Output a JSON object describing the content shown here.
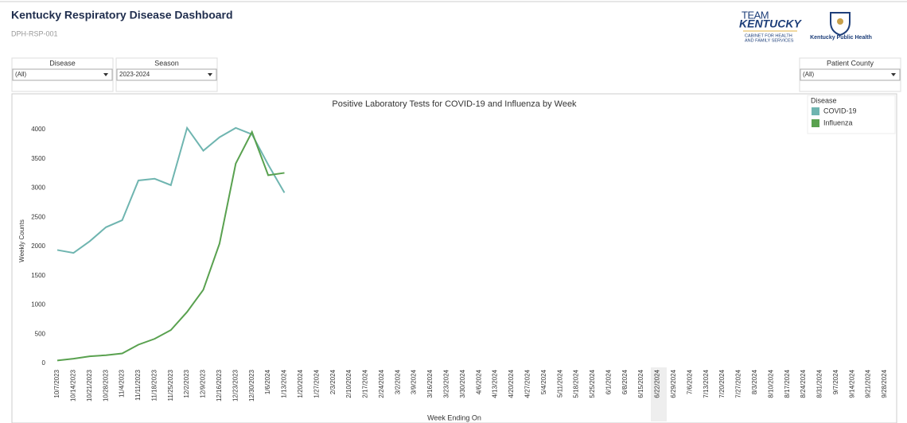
{
  "header": {
    "title": "Kentucky Respiratory Disease Dashboard",
    "code": "DPH-RSP-001"
  },
  "logos": {
    "team": "TEAM",
    "kentucky": "KENTUCKY",
    "cabinet": [
      "CABINET FOR HEALTH",
      "AND FAMILY SERVICES"
    ],
    "kph": "Kentucky Public Health"
  },
  "filters": [
    {
      "label": "Disease",
      "value": "(All)"
    },
    {
      "label": "Season",
      "value": "2023-2024"
    },
    {
      "label": "Patient County",
      "value": "(All)"
    }
  ],
  "chart_data": {
    "type": "line",
    "title": "Positive Laboratory Tests for COVID-19 and Influenza by Week",
    "x_label": "Week Ending On",
    "y_label": "Weekly Counts",
    "legend_title": "Disease",
    "legend": "top-right",
    "categories": [
      "10/7/2023",
      "10/14/2023",
      "10/21/2023",
      "10/28/2023",
      "11/4/2023",
      "11/11/2023",
      "11/18/2023",
      "11/25/2023",
      "12/2/2023",
      "12/9/2023",
      "12/16/2023",
      "12/23/2023",
      "12/30/2023",
      "1/6/2024",
      "1/13/2024",
      "1/20/2024",
      "1/27/2024",
      "2/3/2024",
      "2/10/2024",
      "2/17/2024",
      "2/24/2024",
      "3/2/2024",
      "3/9/2024",
      "3/16/2024",
      "3/23/2024",
      "3/30/2024",
      "4/6/2024",
      "4/13/2024",
      "4/20/2024",
      "4/27/2024",
      "5/4/2024",
      "5/11/2024",
      "5/18/2024",
      "5/25/2024",
      "6/1/2024",
      "6/8/2024",
      "6/15/2024",
      "6/22/2024",
      "6/29/2024",
      "7/6/2024",
      "7/13/2024",
      "7/20/2024",
      "7/27/2024",
      "8/3/2024",
      "8/10/2024",
      "8/17/2024",
      "8/24/2024",
      "8/31/2024",
      "9/7/2024",
      "9/14/2024",
      "9/21/2024",
      "9/28/2024"
    ],
    "series": [
      {
        "name": "COVID-19",
        "color": "#6fb5b0",
        "values": [
          1940,
          1890,
          2090,
          2330,
          2450,
          3130,
          3160,
          3050,
          4030,
          3640,
          3870,
          4030,
          3920,
          3400,
          2920,
          null,
          null,
          null,
          null,
          null,
          null,
          null,
          null,
          null,
          null,
          null,
          null,
          null,
          null,
          null,
          null,
          null,
          null,
          null,
          null,
          null,
          null,
          null,
          null,
          null,
          null,
          null,
          null,
          null,
          null,
          null,
          null,
          null,
          null,
          null,
          null,
          null
        ]
      },
      {
        "name": "Influenza",
        "color": "#59a14f",
        "values": [
          50,
          80,
          120,
          140,
          170,
          320,
          420,
          570,
          880,
          1260,
          2050,
          3420,
          3960,
          3220,
          3260,
          null,
          null,
          null,
          null,
          null,
          null,
          null,
          null,
          null,
          null,
          null,
          null,
          null,
          null,
          null,
          null,
          null,
          null,
          null,
          null,
          null,
          null,
          null,
          null,
          null,
          null,
          null,
          null,
          null,
          null,
          null,
          null,
          null,
          null,
          null,
          null,
          null
        ]
      }
    ],
    "ylim": [
      0,
      4300
    ],
    "yticks": [
      0,
      500,
      1000,
      1500,
      2000,
      2500,
      3000,
      3500,
      4000
    ],
    "grid": false
  }
}
